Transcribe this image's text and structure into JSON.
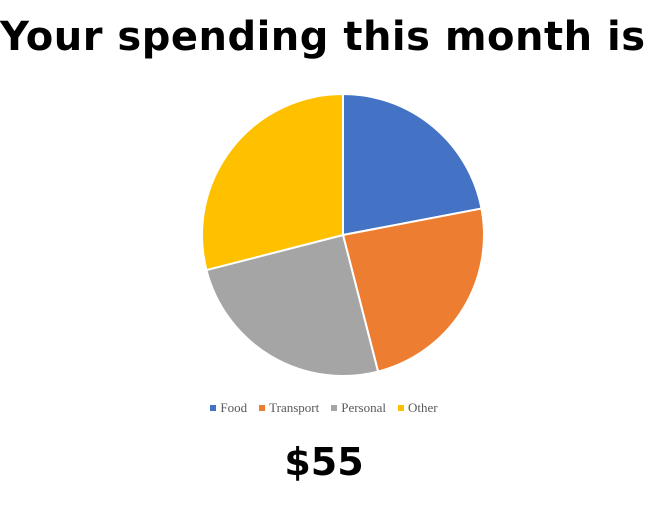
{
  "heading": "Your spending this month is:",
  "amount": "$55",
  "chart_data": {
    "type": "pie",
    "title": "",
    "legend_position": "bottom",
    "categories": [
      "Food",
      "Transport",
      "Personal",
      "Other"
    ],
    "values": [
      22,
      24,
      25,
      29
    ],
    "colors": [
      "#4472C4",
      "#ED7D31",
      "#A5A5A5",
      "#FFC000"
    ]
  }
}
